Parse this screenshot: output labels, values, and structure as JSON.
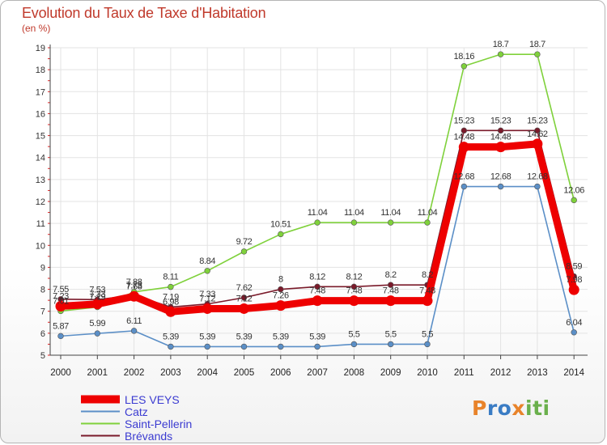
{
  "chart_data": {
    "type": "line",
    "title": "Evolution du Taux de Taxe d'Habitation",
    "subtitle": "(en %)",
    "x": [
      "2000",
      "2001",
      "2002",
      "2003",
      "2004",
      "2005",
      "2006",
      "2007",
      "2008",
      "2009",
      "2010",
      "2011",
      "2012",
      "2013",
      "2014"
    ],
    "ylim": [
      5,
      19
    ],
    "yticks": [
      5,
      6,
      7,
      8,
      9,
      10,
      11,
      12,
      13,
      14,
      15,
      16,
      17,
      18,
      19
    ],
    "grid": true,
    "legend_position": "bottom-left",
    "series": [
      {
        "name": "LES VEYS",
        "color": "#ee0000",
        "values": [
          7.23,
          7.33,
          7.68,
          6.98,
          7.12,
          7.12,
          7.26,
          7.48,
          7.48,
          7.48,
          7.48,
          14.48,
          14.48,
          14.62,
          7.98
        ],
        "labels": [
          "7.23",
          "7.33",
          "7.68",
          "6.98",
          "7.12",
          "7.12",
          "7.26",
          "7.48",
          "7.48",
          "7.48",
          "7.48",
          "14.48",
          "14.48",
          "14.62",
          "7.98"
        ]
      },
      {
        "name": "Catz",
        "color": "#5b8fc7",
        "values": [
          5.87,
          5.99,
          6.11,
          5.39,
          5.39,
          5.39,
          5.39,
          5.39,
          5.5,
          5.5,
          5.5,
          12.68,
          12.68,
          12.68,
          6.04
        ],
        "labels": [
          "5.87",
          "5.99",
          "6.11",
          "5.39",
          "5.39",
          "5.39",
          "5.39",
          "5.39",
          "5.5",
          "5.5",
          "5.5",
          "12.68",
          "12.68",
          "12.68",
          "6.04"
        ]
      },
      {
        "name": "Saint-Pellerin",
        "color": "#7fd13b",
        "values": [
          7.01,
          7.19,
          7.88,
          8.11,
          8.84,
          9.72,
          10.51,
          11.04,
          11.04,
          11.04,
          11.04,
          18.16,
          18.7,
          18.7,
          12.06
        ],
        "labels": [
          "7.01",
          "7.19",
          "7.88",
          "8.11",
          "8.84",
          "9.72",
          "10.51",
          "11.04",
          "11.04",
          "11.04",
          "11.04",
          "18.16",
          "18.7",
          "18.7",
          "12.06"
        ]
      },
      {
        "name": "Brévands",
        "color": "#7a1a2a",
        "values": [
          7.55,
          7.53,
          7.73,
          7.19,
          7.33,
          7.62,
          8,
          8.12,
          8.12,
          8.2,
          8.2,
          15.23,
          15.23,
          15.23,
          8.59
        ],
        "labels": [
          "7.55",
          "7.53",
          "7.73",
          "7.19",
          "7.33",
          "7.62",
          "8",
          "8.12",
          "8.12",
          "8.2",
          "8.2",
          "15.23",
          "15.23",
          "15.23",
          "8.59"
        ]
      }
    ]
  },
  "logo": {
    "text": "Proxiti"
  }
}
